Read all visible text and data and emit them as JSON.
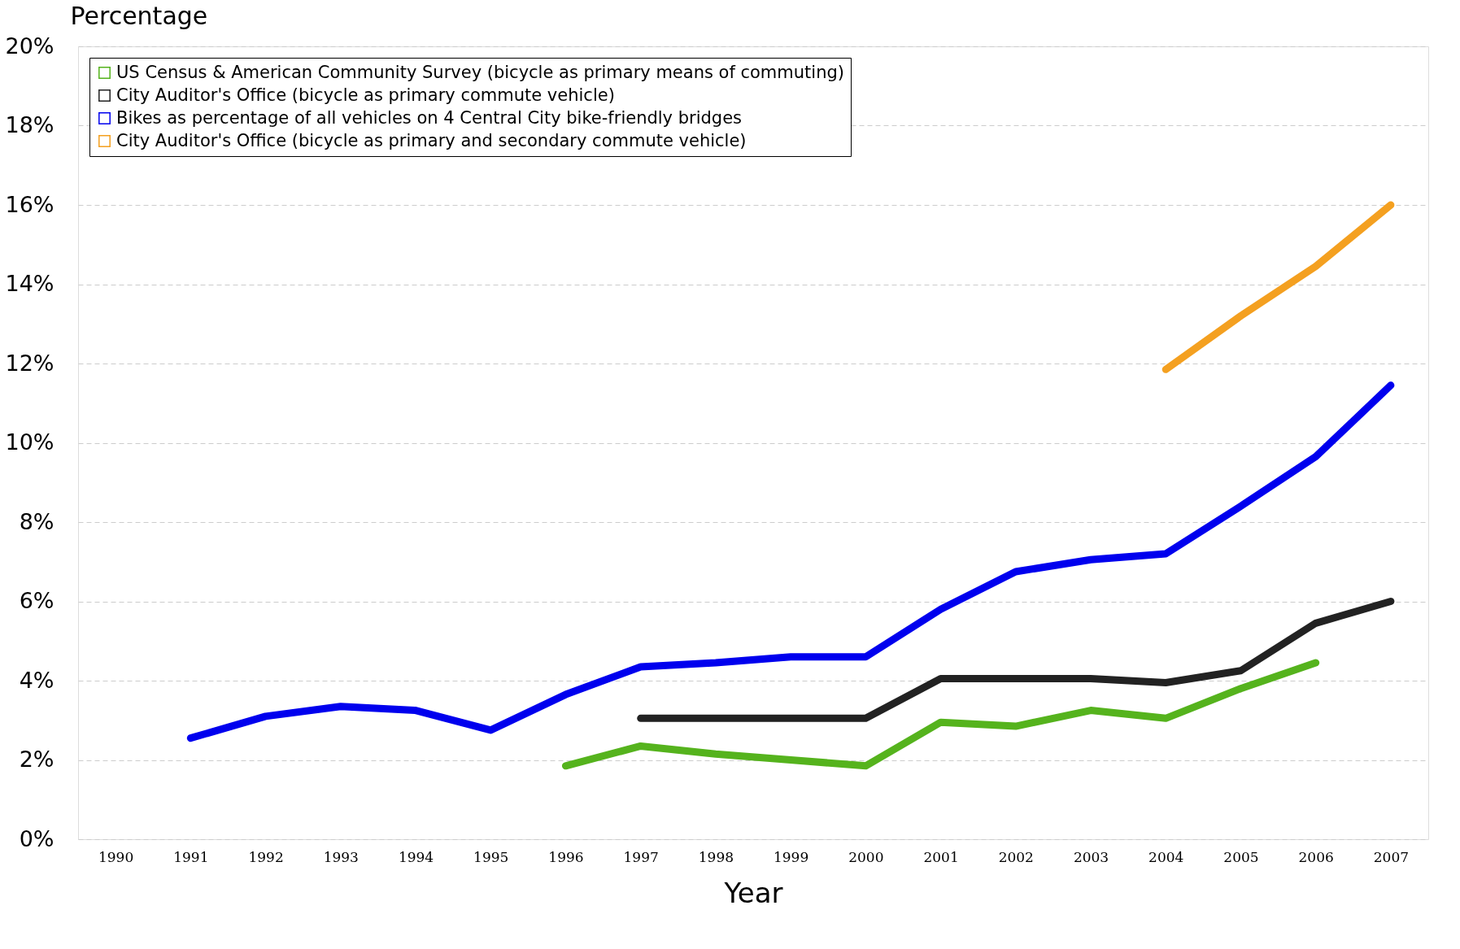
{
  "chart_data": {
    "type": "line",
    "xlabel": "Year",
    "ylabel": "Percentage",
    "categories": [
      "1990",
      "1991",
      "1992",
      "1993",
      "1994",
      "1995",
      "1996",
      "1997",
      "1998",
      "1999",
      "2000",
      "2001",
      "2002",
      "2003",
      "2004",
      "2005",
      "2006",
      "2007"
    ],
    "series": [
      {
        "name": "US Census & American Community Survey (bicycle as primary means of commuting)",
        "color": "#55b31d",
        "values": [
          null,
          null,
          null,
          null,
          null,
          null,
          1.85,
          2.35,
          2.15,
          2.0,
          1.85,
          2.95,
          2.85,
          3.25,
          3.05,
          3.8,
          4.45,
          null
        ]
      },
      {
        "name": "City Auditor's Office (bicycle as primary commute vehicle)",
        "color": "#222222",
        "values": [
          null,
          null,
          null,
          null,
          null,
          null,
          null,
          3.05,
          3.05,
          3.05,
          3.05,
          4.05,
          4.05,
          4.05,
          3.95,
          4.25,
          5.45,
          6.0
        ]
      },
      {
        "name": "Bikes as percentage of all vehicles on 4 Central City bike-friendly bridges",
        "color": "#0000ee",
        "values": [
          null,
          2.55,
          3.1,
          3.35,
          3.25,
          2.75,
          3.65,
          4.35,
          4.45,
          4.6,
          4.6,
          5.8,
          6.75,
          7.05,
          7.2,
          8.4,
          9.65,
          11.45
        ]
      },
      {
        "name": "City Auditor's Office (bicycle as primary and secondary commute vehicle)",
        "color": "#f4a020",
        "values": [
          null,
          null,
          null,
          null,
          null,
          null,
          null,
          null,
          null,
          null,
          null,
          null,
          null,
          null,
          11.85,
          13.2,
          14.45,
          16.0
        ]
      }
    ],
    "ylim": [
      0,
      20
    ],
    "yticks": [
      {
        "value": 0,
        "label": "0%"
      },
      {
        "value": 2,
        "label": "2%"
      },
      {
        "value": 4,
        "label": "4%"
      },
      {
        "value": 6,
        "label": "6%"
      },
      {
        "value": 8,
        "label": "8%"
      },
      {
        "value": 10,
        "label": "10%"
      },
      {
        "value": 12,
        "label": "12%"
      },
      {
        "value": 14,
        "label": "14%"
      },
      {
        "value": 16,
        "label": "16%"
      },
      {
        "value": 18,
        "label": "18%"
      },
      {
        "value": 20,
        "label": "20%"
      }
    ],
    "grid": "y",
    "legend": "top left",
    "marker": "none",
    "line_style": "solid"
  }
}
